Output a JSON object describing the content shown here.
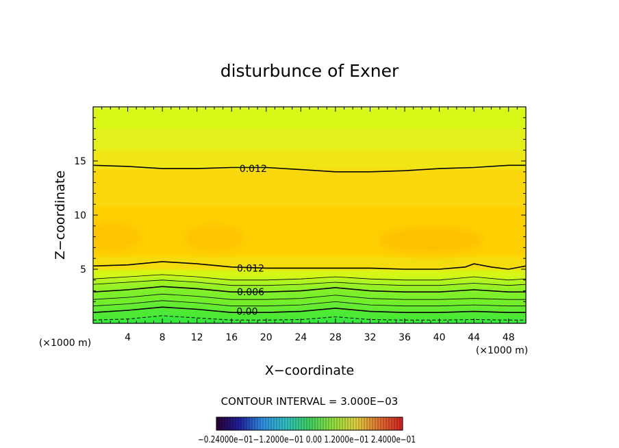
{
  "chart_data": {
    "type": "contour",
    "title": "disturbunce of Exner",
    "xlabel": "X−coordinate",
    "ylabel": "Z−coordinate",
    "x_unit": "(×1000 m)",
    "y_unit": "(×1000 m)",
    "xlim": [
      0,
      50
    ],
    "ylim": [
      0,
      20
    ],
    "x_ticks": [
      4,
      8,
      12,
      16,
      20,
      24,
      28,
      32,
      36,
      40,
      44,
      48
    ],
    "y_ticks": [
      5,
      10,
      15
    ],
    "contour_interval_text": "CONTOUR INTERVAL = 3.000E−03",
    "contour_labels": [
      {
        "text": "0.012",
        "x": 18.5,
        "z": 14.3
      },
      {
        "text": "0.012",
        "x": 18.2,
        "z": 5.1
      },
      {
        "text": "0.006",
        "x": 18.2,
        "z": 2.9
      },
      {
        "text": "0.00",
        "x": 17.8,
        "z": 1.1
      }
    ],
    "contour_lines": [
      {
        "style": "bold",
        "points": [
          [
            0,
            14.6
          ],
          [
            4,
            14.5
          ],
          [
            8,
            14.3
          ],
          [
            12,
            14.3
          ],
          [
            16,
            14.4
          ],
          [
            20,
            14.4
          ],
          [
            24,
            14.2
          ],
          [
            28,
            14.0
          ],
          [
            32,
            14.0
          ],
          [
            36,
            14.1
          ],
          [
            40,
            14.3
          ],
          [
            44,
            14.4
          ],
          [
            48,
            14.6
          ],
          [
            50,
            14.6
          ]
        ]
      },
      {
        "style": "bold",
        "points": [
          [
            0,
            5.3
          ],
          [
            4,
            5.4
          ],
          [
            8,
            5.7
          ],
          [
            12,
            5.5
          ],
          [
            16,
            5.2
          ],
          [
            20,
            5.1
          ],
          [
            24,
            5.1
          ],
          [
            28,
            5.1
          ],
          [
            32,
            5.1
          ],
          [
            36,
            5.0
          ],
          [
            40,
            5.0
          ],
          [
            43,
            5.2
          ],
          [
            44,
            5.5
          ],
          [
            46,
            5.2
          ],
          [
            48,
            5.0
          ],
          [
            50,
            5.3
          ]
        ]
      },
      {
        "style": "thin",
        "points": [
          [
            0,
            4.1
          ],
          [
            4,
            4.3
          ],
          [
            8,
            4.5
          ],
          [
            12,
            4.3
          ],
          [
            16,
            4.0
          ],
          [
            20,
            4.0
          ],
          [
            24,
            4.1
          ],
          [
            28,
            4.3
          ],
          [
            32,
            4.1
          ],
          [
            36,
            4.0
          ],
          [
            40,
            4.0
          ],
          [
            44,
            4.3
          ],
          [
            48,
            4.0
          ],
          [
            50,
            4.1
          ]
        ]
      },
      {
        "style": "thin",
        "points": [
          [
            0,
            3.6
          ],
          [
            4,
            3.8
          ],
          [
            8,
            4.0
          ],
          [
            12,
            3.8
          ],
          [
            16,
            3.5
          ],
          [
            20,
            3.5
          ],
          [
            24,
            3.6
          ],
          [
            28,
            3.8
          ],
          [
            32,
            3.6
          ],
          [
            36,
            3.5
          ],
          [
            40,
            3.5
          ],
          [
            44,
            3.7
          ],
          [
            48,
            3.5
          ],
          [
            50,
            3.6
          ]
        ]
      },
      {
        "style": "bold",
        "points": [
          [
            0,
            2.9
          ],
          [
            4,
            3.1
          ],
          [
            8,
            3.4
          ],
          [
            12,
            3.2
          ],
          [
            16,
            2.9
          ],
          [
            20,
            2.9
          ],
          [
            24,
            3.0
          ],
          [
            28,
            3.3
          ],
          [
            32,
            3.0
          ],
          [
            36,
            2.9
          ],
          [
            40,
            2.9
          ],
          [
            44,
            3.1
          ],
          [
            48,
            2.9
          ],
          [
            50,
            2.9
          ]
        ]
      },
      {
        "style": "thin",
        "points": [
          [
            0,
            2.2
          ],
          [
            4,
            2.4
          ],
          [
            8,
            2.7
          ],
          [
            12,
            2.5
          ],
          [
            16,
            2.2
          ],
          [
            20,
            2.2
          ],
          [
            24,
            2.3
          ],
          [
            28,
            2.6
          ],
          [
            32,
            2.3
          ],
          [
            36,
            2.2
          ],
          [
            40,
            2.2
          ],
          [
            44,
            2.3
          ],
          [
            48,
            2.2
          ],
          [
            50,
            2.2
          ]
        ]
      },
      {
        "style": "thin",
        "points": [
          [
            0,
            1.6
          ],
          [
            4,
            1.8
          ],
          [
            8,
            2.1
          ],
          [
            12,
            1.9
          ],
          [
            16,
            1.6
          ],
          [
            20,
            1.6
          ],
          [
            24,
            1.7
          ],
          [
            28,
            2.0
          ],
          [
            32,
            1.7
          ],
          [
            36,
            1.6
          ],
          [
            40,
            1.6
          ],
          [
            44,
            1.7
          ],
          [
            48,
            1.6
          ],
          [
            50,
            1.6
          ]
        ]
      },
      {
        "style": "bold",
        "points": [
          [
            0,
            1.0
          ],
          [
            4,
            1.2
          ],
          [
            8,
            1.5
          ],
          [
            12,
            1.3
          ],
          [
            16,
            1.0
          ],
          [
            20,
            1.0
          ],
          [
            24,
            1.1
          ],
          [
            28,
            1.4
          ],
          [
            32,
            1.1
          ],
          [
            36,
            1.0
          ],
          [
            40,
            1.0
          ],
          [
            44,
            1.1
          ],
          [
            48,
            1.0
          ],
          [
            50,
            1.0
          ]
        ]
      },
      {
        "style": "dashed",
        "points": [
          [
            0,
            0.3
          ],
          [
            4,
            0.4
          ],
          [
            8,
            0.7
          ],
          [
            12,
            0.5
          ],
          [
            16,
            0.3
          ],
          [
            20,
            0.3
          ],
          [
            24,
            0.35
          ],
          [
            28,
            0.6
          ],
          [
            32,
            0.35
          ],
          [
            36,
            0.3
          ],
          [
            40,
            0.3
          ],
          [
            44,
            0.35
          ],
          [
            48,
            0.3
          ],
          [
            50,
            0.3
          ]
        ]
      }
    ],
    "fill_bands": [
      {
        "z0": 0.0,
        "z1": 0.5,
        "color": "#22e640"
      },
      {
        "z0": 0.5,
        "z1": 1.2,
        "color": "#3ee83a"
      },
      {
        "z0": 1.2,
        "z1": 2.0,
        "color": "#55ea34"
      },
      {
        "z0": 2.0,
        "z1": 2.9,
        "color": "#6ded2e"
      },
      {
        "z0": 2.9,
        "z1": 3.6,
        "color": "#8cf028"
      },
      {
        "z0": 3.6,
        "z1": 4.2,
        "color": "#b0f420"
      },
      {
        "z0": 4.2,
        "z1": 5.0,
        "color": "#d6f716"
      },
      {
        "z0": 5.0,
        "z1": 6.2,
        "color": "#f5dc0a"
      },
      {
        "z0": 6.2,
        "z1": 10.8,
        "color": "#ffd000"
      },
      {
        "z0": 10.8,
        "z1": 14.3,
        "color": "#fbd808"
      },
      {
        "z0": 14.3,
        "z1": 16.0,
        "color": "#f0e614"
      },
      {
        "z0": 16.0,
        "z1": 18.0,
        "color": "#e6f01c"
      },
      {
        "z0": 18.0,
        "z1": 20.0,
        "color": "#d9f719"
      }
    ],
    "highlight_blobs": [
      {
        "x": 2.0,
        "z": 8.0,
        "rx": 3.5,
        "rz": 1.3,
        "color": "#ffbf00"
      },
      {
        "x": 14.0,
        "z": 7.9,
        "rx": 3.5,
        "rz": 1.2,
        "color": "#ffbf00"
      },
      {
        "x": 39.0,
        "z": 7.7,
        "rx": 6.0,
        "rz": 1.2,
        "color": "#ffbc00"
      }
    ],
    "colorbar": {
      "labels_text": "−0.24000e−01−1.2000e−01 0.00 1.2000e−01 2.4000e−01",
      "stops": [
        "#2a0030",
        "#2020a0",
        "#3090e0",
        "#30c0c0",
        "#40d060",
        "#90e040",
        "#e0d040",
        "#e07030",
        "#d02020"
      ]
    }
  }
}
